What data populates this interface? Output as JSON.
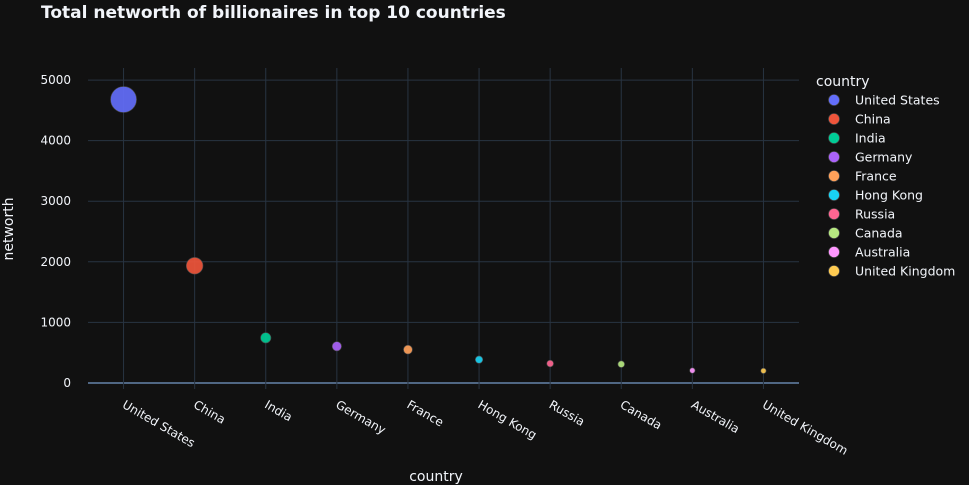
{
  "chart_data": {
    "type": "scatter",
    "title": "Total networth of billionaires in top 10 countries",
    "xlabel": "country",
    "ylabel": "networth",
    "ylim": [
      -100,
      5200
    ],
    "yticks": [
      0,
      1000,
      2000,
      3000,
      4000,
      5000
    ],
    "grid": true,
    "legend_title": "country",
    "legend_position": "right",
    "x": [
      "United States",
      "China",
      "India",
      "Germany",
      "France",
      "Hong Kong",
      "Russia",
      "Canada",
      "Australia",
      "United Kingdom"
    ],
    "series": [
      {
        "name": "United States",
        "x": "United States",
        "y": 4680,
        "color": "#636efa"
      },
      {
        "name": "China",
        "x": "China",
        "y": 1935,
        "color": "#EF553B"
      },
      {
        "name": "India",
        "x": "India",
        "y": 745,
        "color": "#00cc96"
      },
      {
        "name": "Germany",
        "x": "Germany",
        "y": 605,
        "color": "#ab63fa"
      },
      {
        "name": "France",
        "x": "France",
        "y": 550,
        "color": "#FFA15A"
      },
      {
        "name": "Hong Kong",
        "x": "Hong Kong",
        "y": 385,
        "color": "#19d3f3"
      },
      {
        "name": "Russia",
        "x": "Russia",
        "y": 320,
        "color": "#FF6692"
      },
      {
        "name": "Canada",
        "x": "Canada",
        "y": 310,
        "color": "#B6E880"
      },
      {
        "name": "Australia",
        "x": "Australia",
        "y": 205,
        "color": "#FF97FF"
      },
      {
        "name": "United Kingdom",
        "x": "United Kingdom",
        "y": 200,
        "color": "#FECB52"
      }
    ]
  }
}
